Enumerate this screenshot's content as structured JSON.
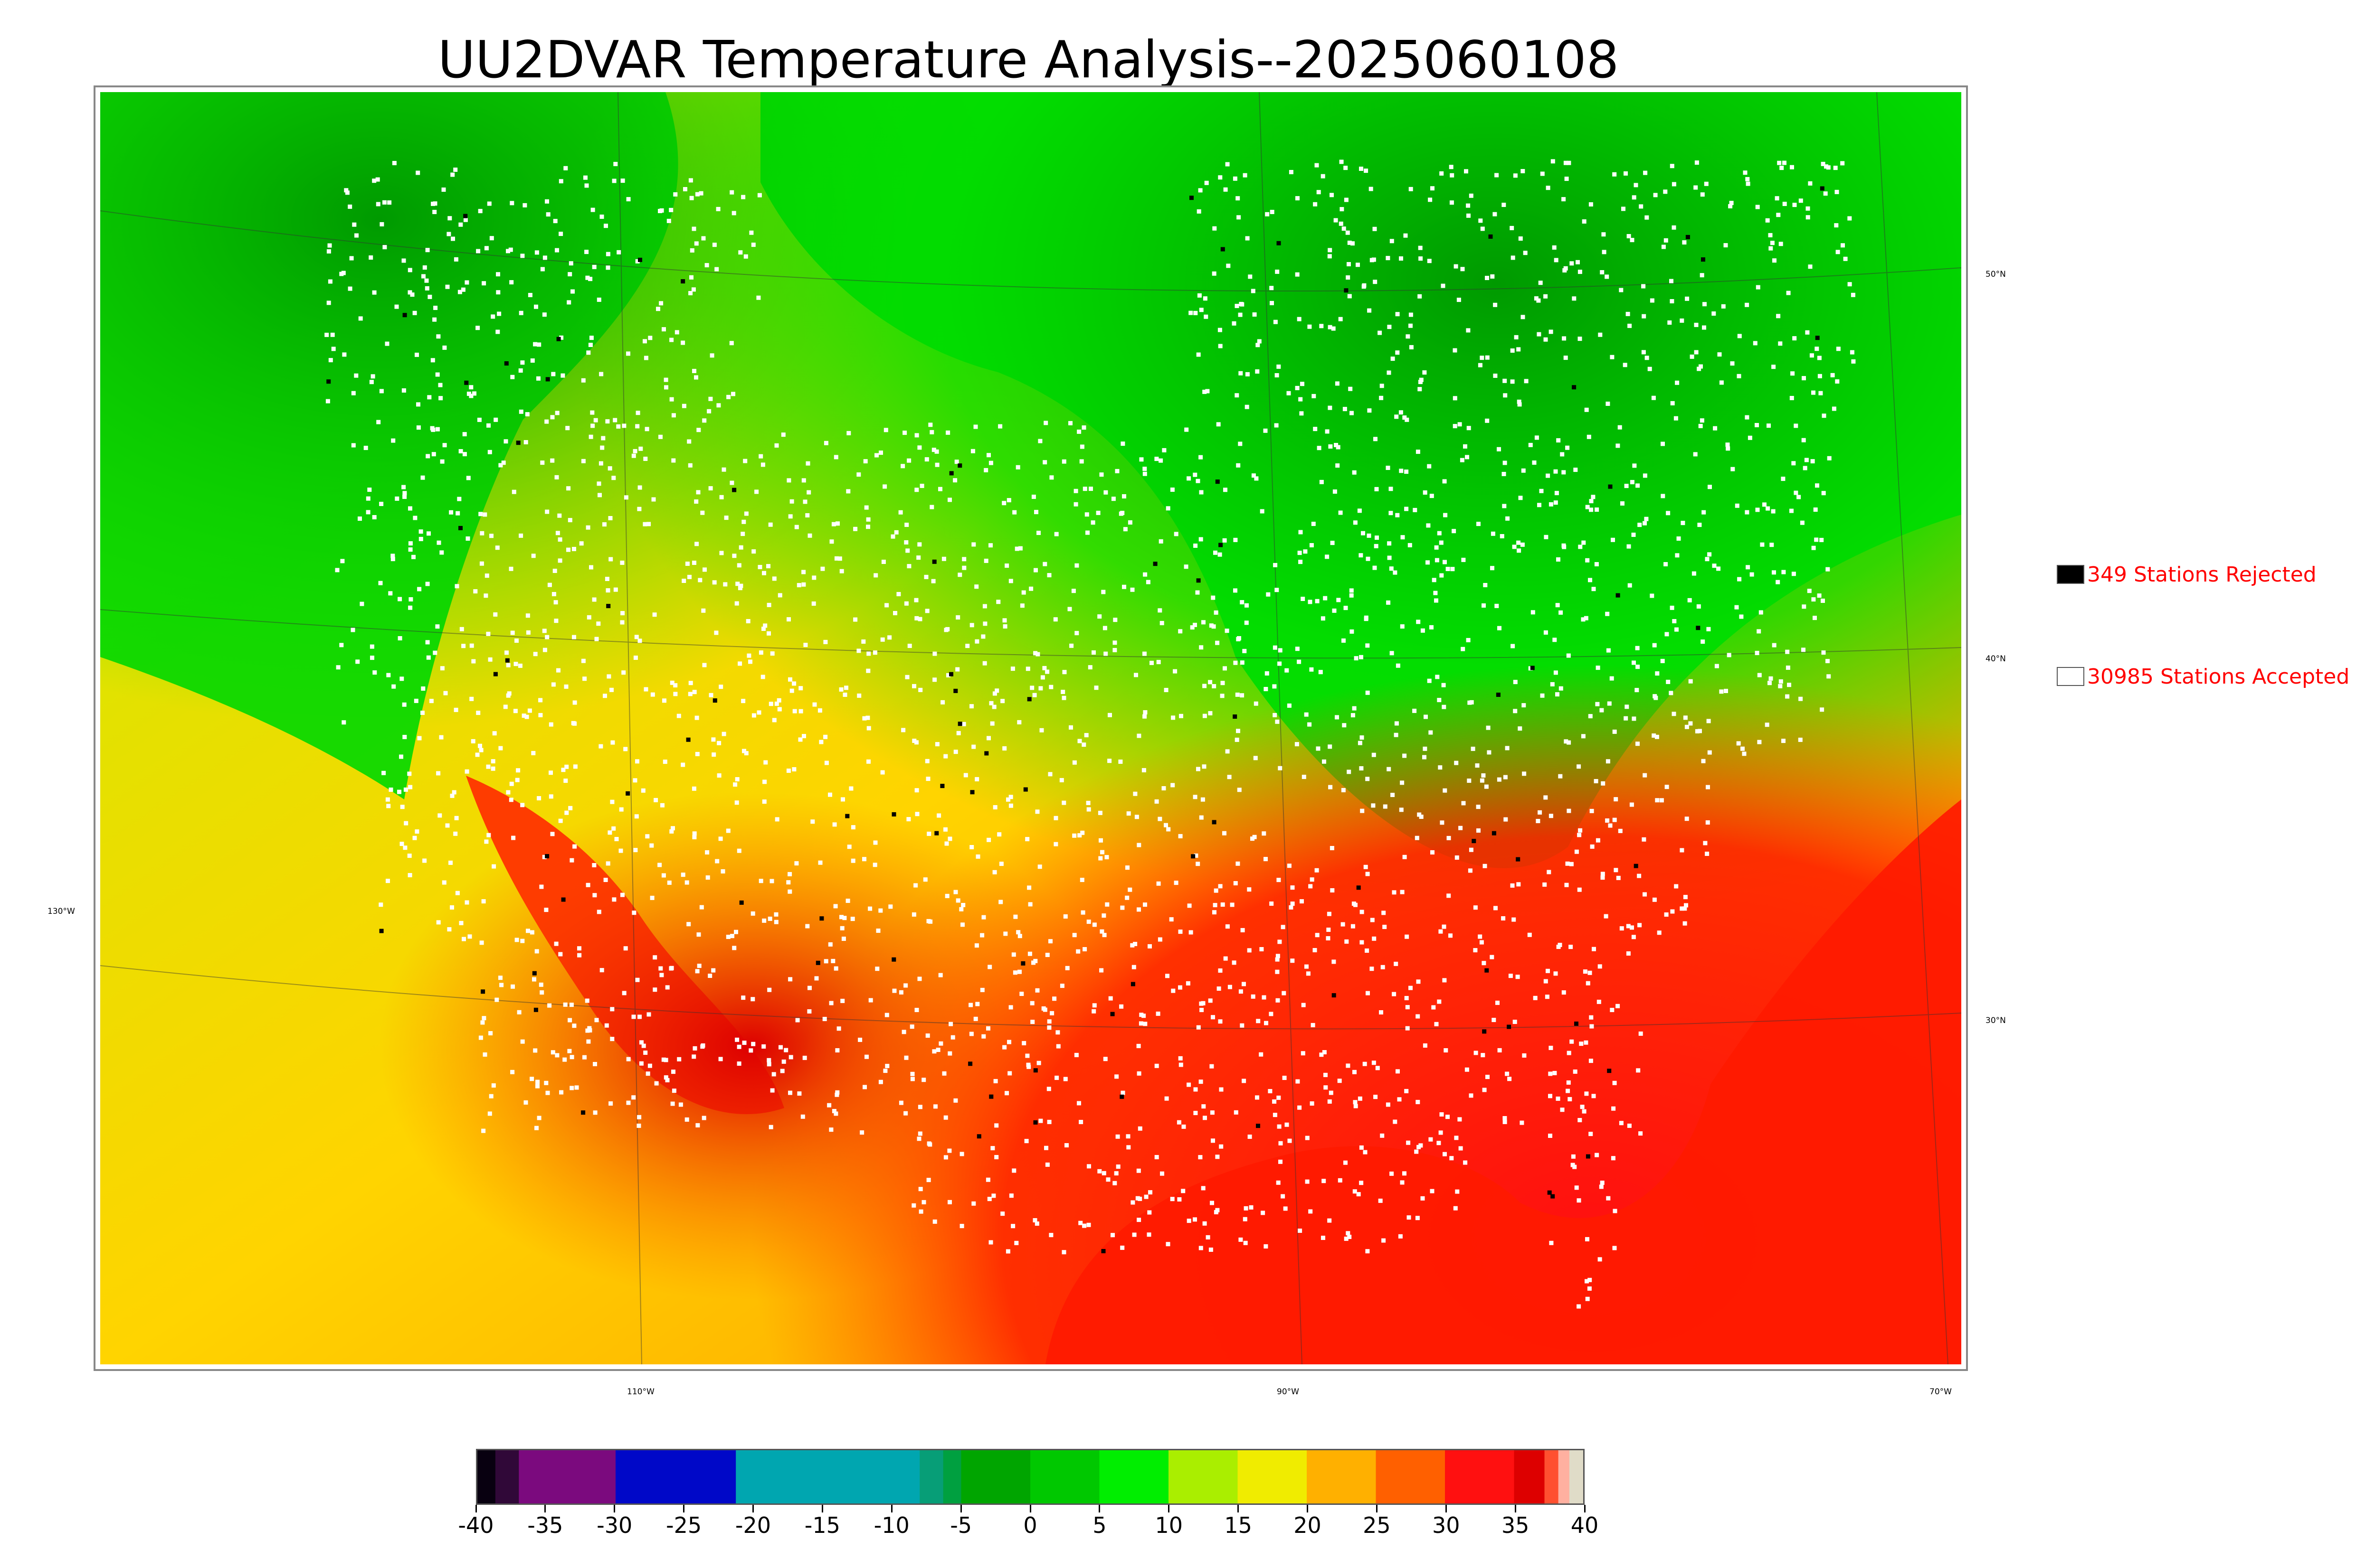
{
  "title": "UU2DVAR Temperature Analysis--2025060108",
  "map": {
    "lon_labels": [
      "110°W",
      "90°W",
      "70°W"
    ],
    "lat_labels_right": [
      "50°N",
      "40°N",
      "30°N"
    ],
    "lon_label_left": "130°W",
    "colors": {
      "cool": "#00dd00",
      "cold": "#00aa00",
      "mild": "#ccee00",
      "warm": "#ffcc00",
      "hot": "#ff7700",
      "very_hot": "#ff1100",
      "extreme": "#dd0000"
    }
  },
  "legend": {
    "rejected": {
      "label": "349 Stations Rejected",
      "swatch_color": "#000000"
    },
    "accepted": {
      "label": "30985 Stations Accepted",
      "swatch_color": "#ffffff"
    }
  },
  "colorbar": {
    "ticks": [
      "-40",
      "-35",
      "-30",
      "-25",
      "-20",
      "-15",
      "-10",
      "-5",
      "0",
      "5",
      "10",
      "15",
      "20",
      "25",
      "30",
      "35",
      "40"
    ],
    "range": [
      -40,
      40
    ],
    "stops": [
      {
        "from": -40,
        "to": -38.7,
        "color": "#080010"
      },
      {
        "from": -38.7,
        "to": -37,
        "color": "#300838"
      },
      {
        "from": -37,
        "to": -30,
        "color": "#7b0a7e"
      },
      {
        "from": -30,
        "to": -21.3,
        "color": "#0008c8"
      },
      {
        "from": -21.3,
        "to": -8,
        "color": "#00a6b0"
      },
      {
        "from": -8,
        "to": -6.3,
        "color": "#079e77"
      },
      {
        "from": -6.3,
        "to": -5,
        "color": "#00a040"
      },
      {
        "from": -5,
        "to": 0,
        "color": "#00a500"
      },
      {
        "from": 0,
        "to": 5,
        "color": "#00c800"
      },
      {
        "from": 5,
        "to": 10,
        "color": "#00ee00"
      },
      {
        "from": 10,
        "to": 15,
        "color": "#aaee00"
      },
      {
        "from": 15,
        "to": 20,
        "color": "#f0ec00"
      },
      {
        "from": 20,
        "to": 25,
        "color": "#ffb000"
      },
      {
        "from": 25,
        "to": 30,
        "color": "#ff6000"
      },
      {
        "from": 30,
        "to": 35,
        "color": "#ff1010"
      },
      {
        "from": 35,
        "to": 37.2,
        "color": "#dd0000"
      },
      {
        "from": 37.2,
        "to": 38.2,
        "color": "#ff5030"
      },
      {
        "from": 38.2,
        "to": 39,
        "color": "#ffb0a0"
      },
      {
        "from": 39,
        "to": 40,
        "color": "#e0dcc8"
      }
    ]
  }
}
